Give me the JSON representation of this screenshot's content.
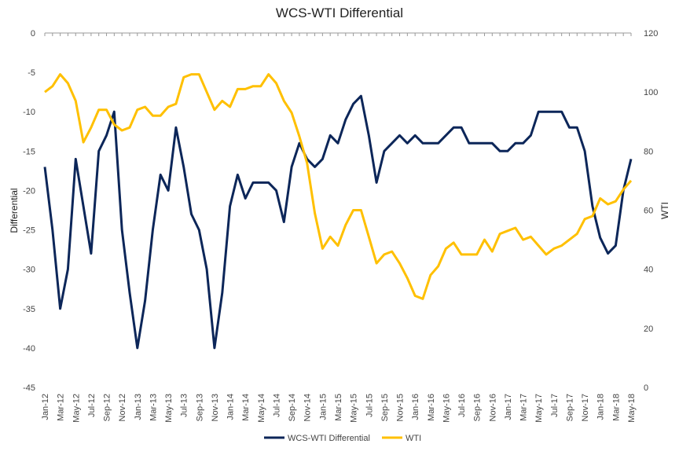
{
  "chart_data": {
    "type": "line",
    "title": "WCS-WTI Differential",
    "y_label": "Differential",
    "y2_label": "WTI",
    "categories": [
      "Jan-12",
      null,
      "Mar-12",
      null,
      "May-12",
      null,
      "Jul-12",
      null,
      "Sep-12",
      null,
      "Nov-12",
      null,
      "Jan-13",
      null,
      "Mar-13",
      null,
      "May-13",
      null,
      "Jul-13",
      null,
      "Sep-13",
      null,
      "Nov-13",
      null,
      "Jan-14",
      null,
      "Mar-14",
      null,
      "May-14",
      null,
      "Jul-14",
      null,
      "Sep-14",
      null,
      "Nov-14",
      null,
      "Jan-15",
      null,
      "Mar-15",
      null,
      "May-15",
      null,
      "Jul-15",
      null,
      "Sep-15",
      null,
      "Nov-15",
      null,
      "Jan-16",
      null,
      "Mar-16",
      null,
      "May-16",
      null,
      "Jul-16",
      null,
      "Sep-16",
      null,
      "Nov-16",
      null,
      "Jan-17",
      null,
      "Mar-17",
      null,
      "May-17",
      null,
      "Jul-17",
      null,
      "Sep-17",
      null,
      "Nov-17",
      null,
      "Jan-18",
      null,
      "Mar-18",
      null,
      "May-18"
    ],
    "series": [
      {
        "name": "WCS-WTI Differential",
        "color": "#0c2659",
        "axis": "y",
        "values": [
          -17,
          -25,
          -35,
          -30,
          -16,
          -22,
          -28,
          -15,
          -13,
          -10,
          -25,
          -33,
          -40,
          -34,
          -25,
          -18,
          -20,
          -12,
          -17,
          -23,
          -25,
          -30,
          -40,
          -33,
          -22,
          -18,
          -21,
          -19,
          -19,
          -19,
          -20,
          -24,
          -17,
          -14,
          -16,
          -17,
          -16,
          -13,
          -14,
          -11,
          -9,
          -8,
          -13,
          -19,
          -15,
          -14,
          -13,
          -14,
          -13,
          -14,
          -14,
          -14,
          -13,
          -12,
          -12,
          -14,
          -14,
          -14,
          -14,
          -15,
          -15,
          -14,
          -14,
          -13,
          -10,
          -10,
          -10,
          -10,
          -12,
          -12,
          -15,
          -22,
          -26,
          -28,
          -27,
          -20,
          -16
        ]
      },
      {
        "name": "WTI",
        "color": "#ffc000",
        "axis": "y2",
        "values": [
          100,
          102,
          106,
          103,
          97,
          83,
          88,
          94,
          94,
          89,
          87,
          88,
          94,
          95,
          92,
          92,
          95,
          96,
          105,
          106,
          106,
          100,
          94,
          97,
          95,
          101,
          101,
          102,
          102,
          106,
          103,
          97,
          93,
          85,
          76,
          59,
          47,
          51,
          48,
          55,
          60,
          60,
          51,
          42,
          45,
          46,
          42,
          37,
          31,
          30,
          38,
          41,
          47,
          49,
          45,
          45,
          45,
          50,
          46,
          52,
          53,
          54,
          50,
          51,
          48,
          45,
          47,
          48,
          50,
          52,
          57,
          58,
          64,
          62,
          63,
          67,
          70
        ]
      }
    ],
    "ylim": [
      -45,
      0
    ],
    "yticks": [
      0,
      -5,
      -10,
      -15,
      -20,
      -25,
      -30,
      -35,
      -40,
      -45
    ],
    "y2lim": [
      0,
      120
    ],
    "y2ticks": [
      0,
      20,
      40,
      60,
      80,
      100,
      120
    ],
    "legend": "bottom"
  }
}
